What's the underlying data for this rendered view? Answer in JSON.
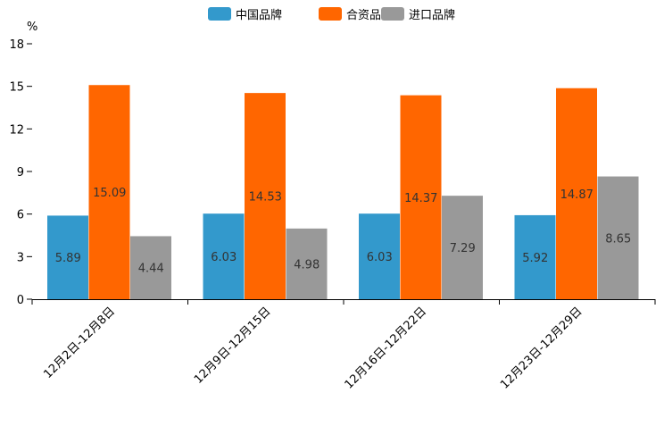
{
  "chart_data": {
    "type": "bar",
    "title": "",
    "ylabel": "%",
    "xlabel": "",
    "ylim": [
      0,
      18
    ],
    "yticks": [
      0,
      3,
      6,
      9,
      12,
      15,
      18
    ],
    "categories": [
      "12月2日-12月8日",
      "12月9日-12月15日",
      "12月16日-12月22日",
      "12月23日-12月29日"
    ],
    "series": [
      {
        "name": "中国品牌",
        "color": "#3399cc",
        "values": [
          5.89,
          6.03,
          6.03,
          5.92
        ]
      },
      {
        "name": "合资品牌",
        "color": "#ff6600",
        "values": [
          15.09,
          14.53,
          14.37,
          14.87
        ]
      },
      {
        "name": "进口品牌",
        "color": "#999999",
        "values": [
          4.44,
          4.98,
          7.29,
          8.65
        ]
      }
    ],
    "legend_position": "top-center",
    "grid": false
  }
}
